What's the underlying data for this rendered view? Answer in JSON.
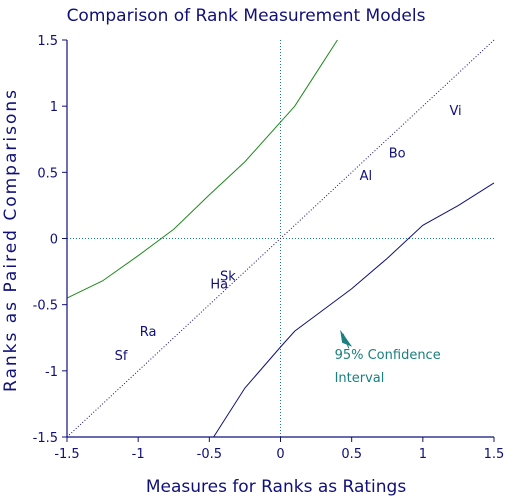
{
  "chart_data": {
    "type": "scatter",
    "title": "Comparison of Rank Measurement Models",
    "xlabel": "Measures for Ranks as Ratings",
    "ylabel": "Ranks as Paired Comparisons",
    "xlim": [
      -1.5,
      1.5
    ],
    "ylim": [
      -1.5,
      1.5
    ],
    "x_ticks": [
      -1.5,
      -1,
      -0.5,
      0,
      0.5,
      1,
      1.5
    ],
    "x_tick_labels": [
      "-1.5",
      "-1",
      "-0.5",
      "0",
      "0.5",
      "1",
      "1.5"
    ],
    "y_ticks": [
      1.5,
      1,
      0.5,
      0,
      -0.5,
      -1,
      -1.5
    ],
    "y_tick_labels": [
      "1.5",
      "1",
      "0.5",
      "0",
      "-0.5",
      "-1",
      "-1.5"
    ],
    "zero_reference_lines": true,
    "points": [
      {
        "label": "Sf",
        "x": -1.12,
        "y": -0.88
      },
      {
        "label": "Ra",
        "x": -0.93,
        "y": -0.7
      },
      {
        "label": "Ha",
        "x": -0.43,
        "y": -0.34
      },
      {
        "label": "Sk",
        "x": -0.37,
        "y": -0.28
      },
      {
        "label": "Al",
        "x": 0.6,
        "y": 0.48
      },
      {
        "label": "Bo",
        "x": 0.82,
        "y": 0.65
      },
      {
        "label": "Vi",
        "x": 1.23,
        "y": 0.97
      }
    ],
    "identity_line": {
      "x": [
        -1.5,
        1.5
      ],
      "y": [
        -1.5,
        1.5
      ]
    },
    "upper_confidence_curve": {
      "x": [
        -1.5,
        -1.25,
        -1.0,
        -0.75,
        -0.5,
        -0.25,
        0.0,
        0.1,
        0.25,
        0.4
      ],
      "y": [
        -0.45,
        -0.32,
        -0.13,
        0.07,
        0.33,
        0.58,
        0.88,
        1.0,
        1.25,
        1.5
      ]
    },
    "lower_confidence_curve": {
      "x": [
        -0.47,
        -0.25,
        0.0,
        0.1,
        0.25,
        0.5,
        0.75,
        1.0,
        1.25,
        1.5
      ],
      "y": [
        -1.5,
        -1.13,
        -0.82,
        -0.7,
        -0.58,
        -0.38,
        -0.15,
        0.1,
        0.25,
        0.42
      ]
    },
    "annotation": {
      "lines": [
        "95% Confidence",
        "Interval"
      ],
      "arrow_tip": {
        "x": 0.44,
        "y": -0.72
      },
      "arrow_tail": {
        "x": 0.48,
        "y": -0.83
      }
    },
    "colors": {
      "axes": "#10107a",
      "text": "#10107a",
      "upper_curve": "#1e8a1e",
      "lower_curve": "#10107a",
      "identity": "#10107a",
      "zero_lines": "#1a8080",
      "annotation": "#1a8080"
    }
  }
}
